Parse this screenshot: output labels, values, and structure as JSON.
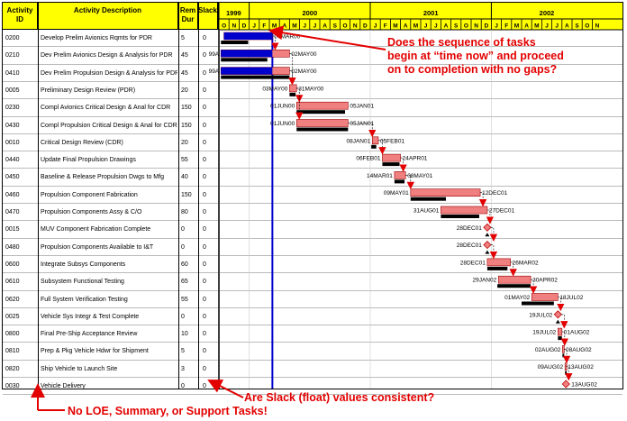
{
  "headers": {
    "activity_id": "Activity ID",
    "activity_desc": "Activity Description",
    "rem_dur": "Rem Dur",
    "slack": "Slack"
  },
  "timescale": {
    "years": [
      {
        "label": "1999",
        "start": 0,
        "span": 3
      },
      {
        "label": "2000",
        "start": 3,
        "span": 12
      },
      {
        "label": "2001",
        "start": 15,
        "span": 12
      },
      {
        "label": "2002",
        "start": 27,
        "span": 11
      }
    ],
    "months": [
      "O",
      "N",
      "D",
      "J",
      "F",
      "M",
      "A",
      "M",
      "J",
      "J",
      "A",
      "S",
      "O",
      "N",
      "D",
      "J",
      "F",
      "M",
      "A",
      "M",
      "J",
      "J",
      "A",
      "S",
      "O",
      "N",
      "D",
      "J",
      "F",
      "M",
      "A",
      "M",
      "J",
      "J",
      "A",
      "S",
      "O",
      "N"
    ],
    "status_date_month": 5.3
  },
  "activities": [
    {
      "id": "0200",
      "desc": "Develop Prelim Avionics Rqmts for PDR",
      "rem": "5",
      "slack": "0",
      "bar": [
        0.5,
        5.3
      ],
      "done": [
        0.5,
        5.3
      ],
      "base": [
        0.2,
        2.9
      ],
      "ls": "",
      "rs": "07MAR00"
    },
    {
      "id": "0210",
      "desc": "Dev Prelim Avionics Design & Analysis for PDR",
      "rem": "45",
      "slack": "0",
      "bar": [
        0.2,
        7.0
      ],
      "done": [
        0.2,
        5.3
      ],
      "base": [
        0.2,
        4.8
      ],
      "ls": "99A",
      "rs": "02MAY00"
    },
    {
      "id": "0410",
      "desc": "Dev Prelim Propulsion Design & Analysis for PDR",
      "rem": "45",
      "slack": "0",
      "bar": [
        0.2,
        7.0
      ],
      "done": [
        0.2,
        5.3
      ],
      "base": [
        0.2,
        7.0
      ],
      "ls": "99A",
      "rs": "02MAY00"
    },
    {
      "id": "0005",
      "desc": "Preliminary Design Review (PDR)",
      "rem": "20",
      "slack": "0",
      "bar": [
        7.0,
        7.7
      ],
      "done": null,
      "base": [
        7.0,
        7.6
      ],
      "ls": "03MAY00",
      "rs": "31MAY00"
    },
    {
      "id": "0230",
      "desc": "Compl Avionics Critical Design & Anal for CDR",
      "rem": "150",
      "slack": "0",
      "bar": [
        7.7,
        12.8
      ],
      "done": null,
      "base": [
        7.7,
        12.5
      ],
      "ls": "01JUN00",
      "rs": "05JAN01"
    },
    {
      "id": "0430",
      "desc": "Compl Propulsion Critical Design & Anal for CDR",
      "rem": "150",
      "slack": "0",
      "bar": [
        7.7,
        12.8
      ],
      "done": null,
      "base": [
        7.7,
        12.8
      ],
      "ls": "01JUN00",
      "rs": "05JAN01"
    },
    {
      "id": "0010",
      "desc": "Critical Design Review (CDR)",
      "rem": "20",
      "slack": "0",
      "bar": [
        15.2,
        15.8
      ],
      "done": null,
      "base": [
        15.1,
        15.6
      ],
      "ls": "08JAN01",
      "rs": "05FEB01"
    },
    {
      "id": "0440",
      "desc": "Update Final Propulsion Drawings",
      "rem": "55",
      "slack": "0",
      "bar": [
        16.2,
        18.0
      ],
      "done": null,
      "base": [
        16.2,
        17.9
      ],
      "ls": "06FEB01",
      "rs": "24APR01"
    },
    {
      "id": "0450",
      "desc": "Baseline & Release Propulsion Dwgs to Mfg",
      "rem": "40",
      "slack": "0",
      "bar": [
        17.4,
        18.5
      ],
      "done": null,
      "base": [
        17.4,
        18.4
      ],
      "ls": "14MAR01",
      "rs": "08MAY01"
    },
    {
      "id": "0460",
      "desc": "Propulsion Component Fabrication",
      "rem": "150",
      "slack": "0",
      "bar": [
        19.0,
        25.9
      ],
      "done": null,
      "base": [
        19.0,
        22.5
      ],
      "ls": "09MAY01",
      "rs": "12DEC01"
    },
    {
      "id": "0470",
      "desc": "Propulsion Components Assy & C/O",
      "rem": "80",
      "slack": "0",
      "bar": [
        22.0,
        26.6
      ],
      "done": null,
      "base": [
        22.0,
        25.8
      ],
      "ls": "31AUG01",
      "rs": "27DEC01"
    },
    {
      "id": "0015",
      "desc": "MUV Component Fabrication Complete",
      "rem": "0",
      "slack": "0",
      "bar": [
        26.6,
        26.6
      ],
      "done": null,
      "base": null,
      "ls": "28DEC01",
      "rs": "",
      "ms": true
    },
    {
      "id": "0480",
      "desc": "Propulsion Components Available to I&T",
      "rem": "0",
      "slack": "0",
      "bar": [
        26.6,
        26.6
      ],
      "done": null,
      "base": null,
      "ls": "28DEC01",
      "rs": "",
      "ms": true
    },
    {
      "id": "0600",
      "desc": "Integrate Subsys Components",
      "rem": "60",
      "slack": "0",
      "bar": [
        26.6,
        28.9
      ],
      "done": null,
      "base": [
        26.6,
        28.6
      ],
      "ls": "28DEC01",
      "rs": "26MAR02"
    },
    {
      "id": "0610",
      "desc": "Subsystem Functional Testing",
      "rem": "65",
      "slack": "0",
      "bar": [
        27.7,
        30.9
      ],
      "done": null,
      "base": [
        27.6,
        30.9
      ],
      "ls": "29JAN02",
      "rs": "30APR02"
    },
    {
      "id": "0620",
      "desc": "Full System Verification Testing",
      "rem": "55",
      "slack": "0",
      "bar": [
        31.0,
        33.6
      ],
      "done": null,
      "base": [
        30.0,
        33.2
      ],
      "ls": "01MAY02",
      "rs": "18JUL02"
    },
    {
      "id": "0025",
      "desc": "Vehicle Sys Integr & Test Complete",
      "rem": "0",
      "slack": "0",
      "bar": [
        33.6,
        33.6
      ],
      "done": null,
      "base": null,
      "ls": "19JUL02",
      "rs": "",
      "ms": true
    },
    {
      "id": "0800",
      "desc": "Final Pre-Ship Acceptance Review",
      "rem": "10",
      "slack": "0",
      "bar": [
        33.6,
        34.0
      ],
      "done": null,
      "base": [
        33.6,
        34.0
      ],
      "ls": "19JUL02",
      "rs": "01AUG02"
    },
    {
      "id": "0810",
      "desc": "Prep & Pkg Vehicle Hdwr for Shipment",
      "rem": "5",
      "slack": "0",
      "bar": [
        34.05,
        34.2
      ],
      "done": null,
      "base": [
        34.05,
        34.2
      ],
      "ls": "02AUG02",
      "rs": "08AUG02"
    },
    {
      "id": "0820",
      "desc": "Ship Vehicle to Launch Site",
      "rem": "3",
      "slack": "0",
      "bar": [
        34.3,
        34.4
      ],
      "done": null,
      "base": [
        34.3,
        34.4
      ],
      "ls": "09AUG02",
      "rs": "13AUG02"
    },
    {
      "id": "0030",
      "desc": "Vehicle Delivery",
      "rem": "0",
      "slack": "0",
      "bar": [
        34.4,
        34.4
      ],
      "done": null,
      "base": null,
      "ls": "",
      "rs": "13AUG02",
      "ms": true
    }
  ],
  "annotations": {
    "q1": "Does the sequence of tasks begin at “time now” and proceed on to completion with no gaps?",
    "q1_lines": [
      "Does the sequence of tasks",
      "begin at “time now” and proceed",
      "on to completion with no gaps?"
    ],
    "q2": "Are Slack (float) values consistent?",
    "q3": "No LOE, Summary, or Support Tasks!"
  },
  "colors": {
    "header_bg": "#ffff00",
    "bar_fill": "#f08080",
    "progress": "#0000cc",
    "baseline": "#000000",
    "annotation": "#e30000",
    "status_line": "#0000cc"
  }
}
